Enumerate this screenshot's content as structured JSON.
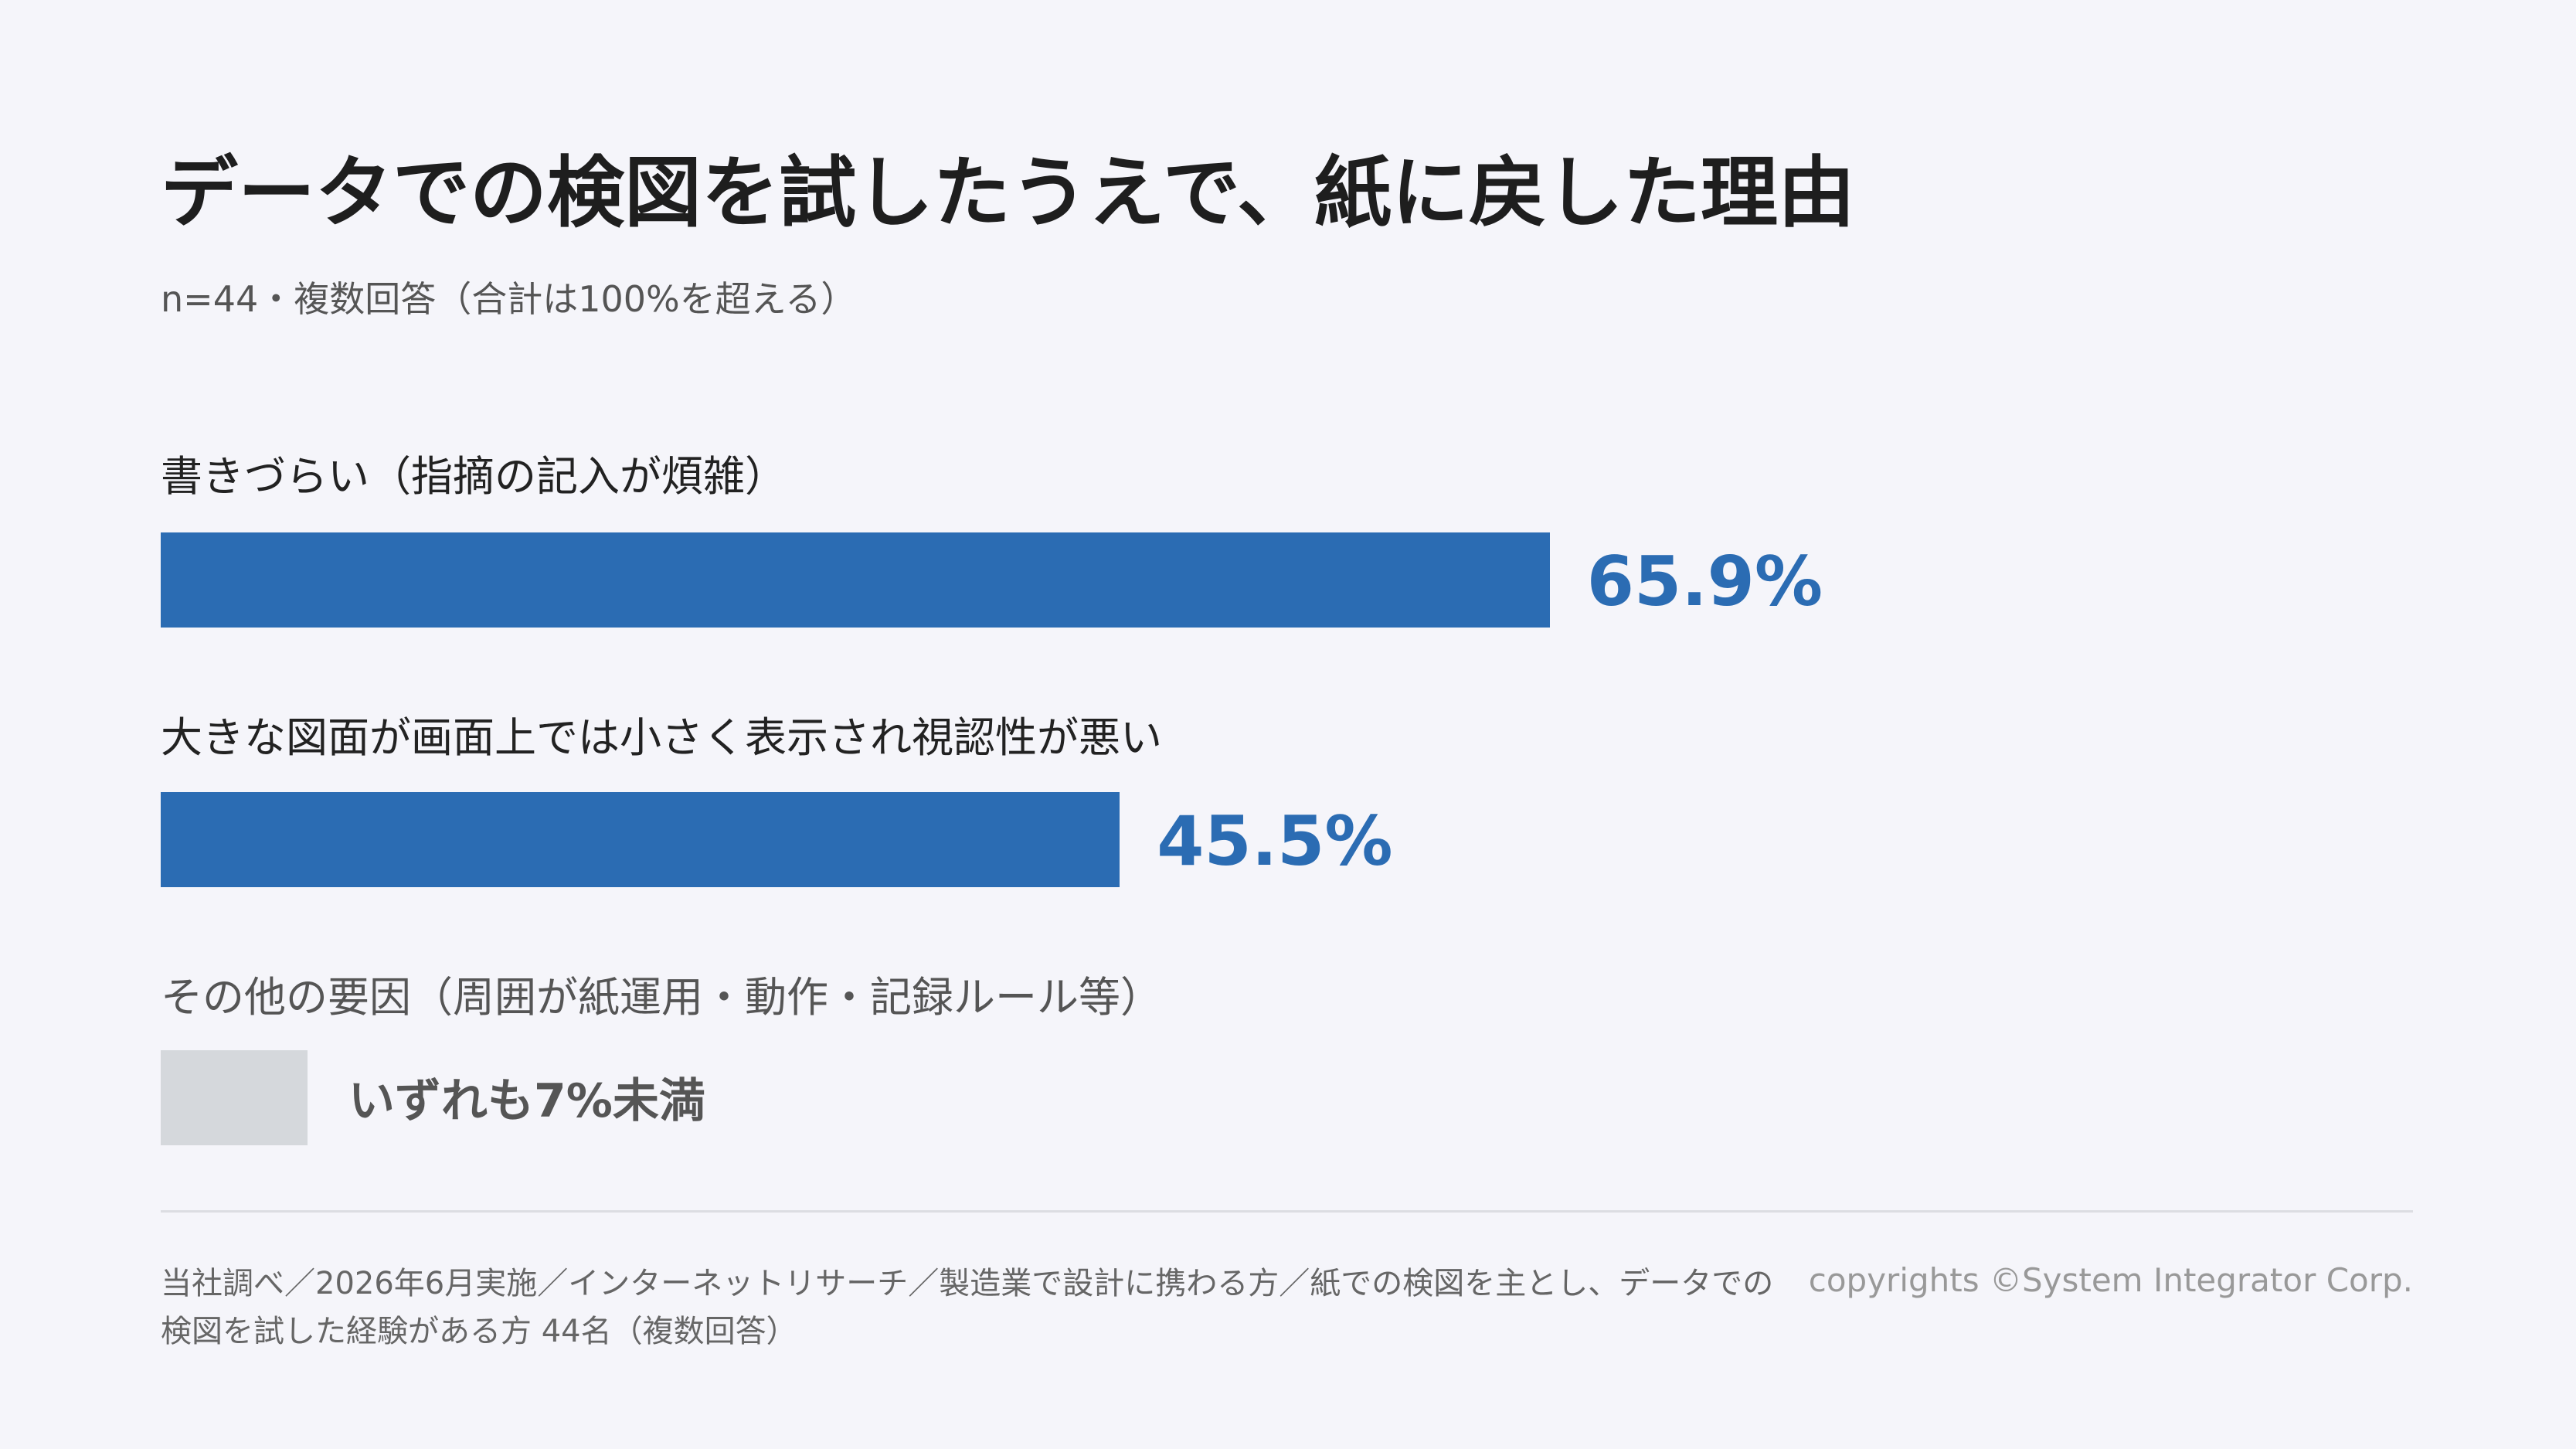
{
  "chart_data": {
    "type": "bar",
    "orientation": "horizontal",
    "title": "データでの検図を試したうえで、紙に戻した理由",
    "subtitle": "n=44・複数回答（合計は100%を超える）",
    "categories": [
      "書きづらい（指摘の記入が煩雑）",
      "大きな図面が画面上では小さく表示され視認性が悪い"
    ],
    "values": [
      65.9,
      45.5
    ],
    "value_labels": [
      "65.9%",
      "45.5%"
    ],
    "color": "#2b6cb3",
    "other_label": "その他の要因（周囲が紙運用・動作・記録ルール等）",
    "other_note": "いずれも7%未満",
    "other_color": "#d5d8dc",
    "source": "当社調べ／2026年6月実施／インターネットリサーチ／製造業で設計に携わる方／紙での検図を主とし、データでの検図を試した経験がある方 44名（複数回答）",
    "copyright": "copyrights ©System Integrator Corp."
  }
}
